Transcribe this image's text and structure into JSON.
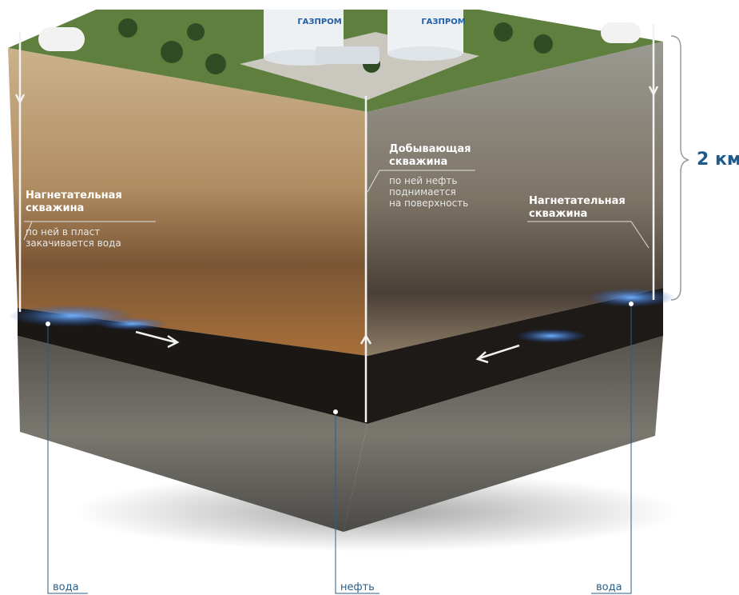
{
  "tanks": [
    "ГАЗПРОМ",
    "ГАЗПРОМ"
  ],
  "left_well": {
    "title": [
      "Нагнетательная",
      "скважина"
    ],
    "note": [
      "по ней в пласт",
      "закачивается вода"
    ]
  },
  "center_well": {
    "title": [
      "Добывающая",
      "скважина"
    ],
    "note": [
      "по ней нефть",
      "поднимается",
      "на поверхность"
    ]
  },
  "right_well": {
    "title": [
      "Нагнетательная",
      "скважина"
    ]
  },
  "depth": "2 км",
  "legend": [
    "вода",
    "нефть",
    "вода"
  ]
}
